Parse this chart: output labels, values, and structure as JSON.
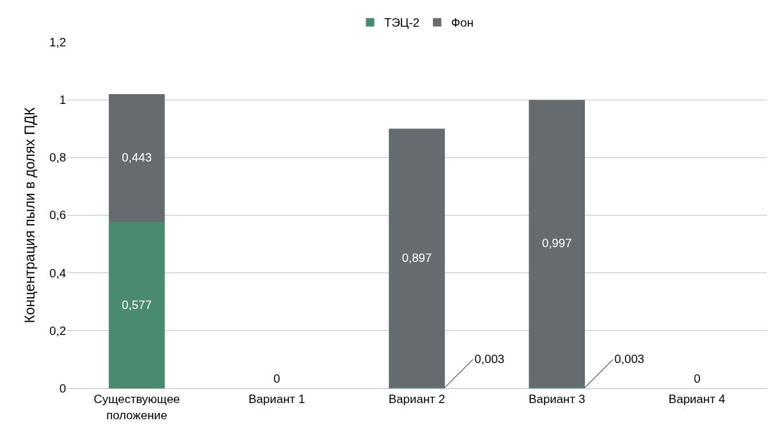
{
  "chart_data": {
    "type": "bar",
    "stacked": true,
    "ylabel": "Концентрация пыли в долях ПДК",
    "categories": [
      "Существующее положение",
      "Вариант 1",
      "Вариант 2",
      "Вариант 3",
      "Вариант 4"
    ],
    "series": [
      {
        "name": "ТЭЦ-2",
        "color": "#4a8a6e",
        "values": [
          0.577,
          0,
          0.003,
          0.003,
          0
        ],
        "value_labels": [
          "0,577",
          "0",
          "0,003",
          "0,003",
          "0"
        ]
      },
      {
        "name": "Фон",
        "color": "#656b6f",
        "values": [
          0.443,
          0,
          0.897,
          0.997,
          0
        ],
        "value_labels": [
          "0,443",
          null,
          "0,897",
          "0,997",
          null
        ]
      }
    ],
    "ylim": [
      0,
      1.2
    ],
    "yticks": [
      0,
      {
        "value": 0.2,
        "label": "0,2"
      },
      {
        "value": 0.4,
        "label": "0,4"
      },
      {
        "value": 0.6,
        "label": "0,6"
      },
      {
        "value": 0.8,
        "label": "0,8"
      },
      1,
      {
        "value": 1.2,
        "label": "1,2"
      }
    ],
    "grid": "y",
    "legend": "top"
  }
}
